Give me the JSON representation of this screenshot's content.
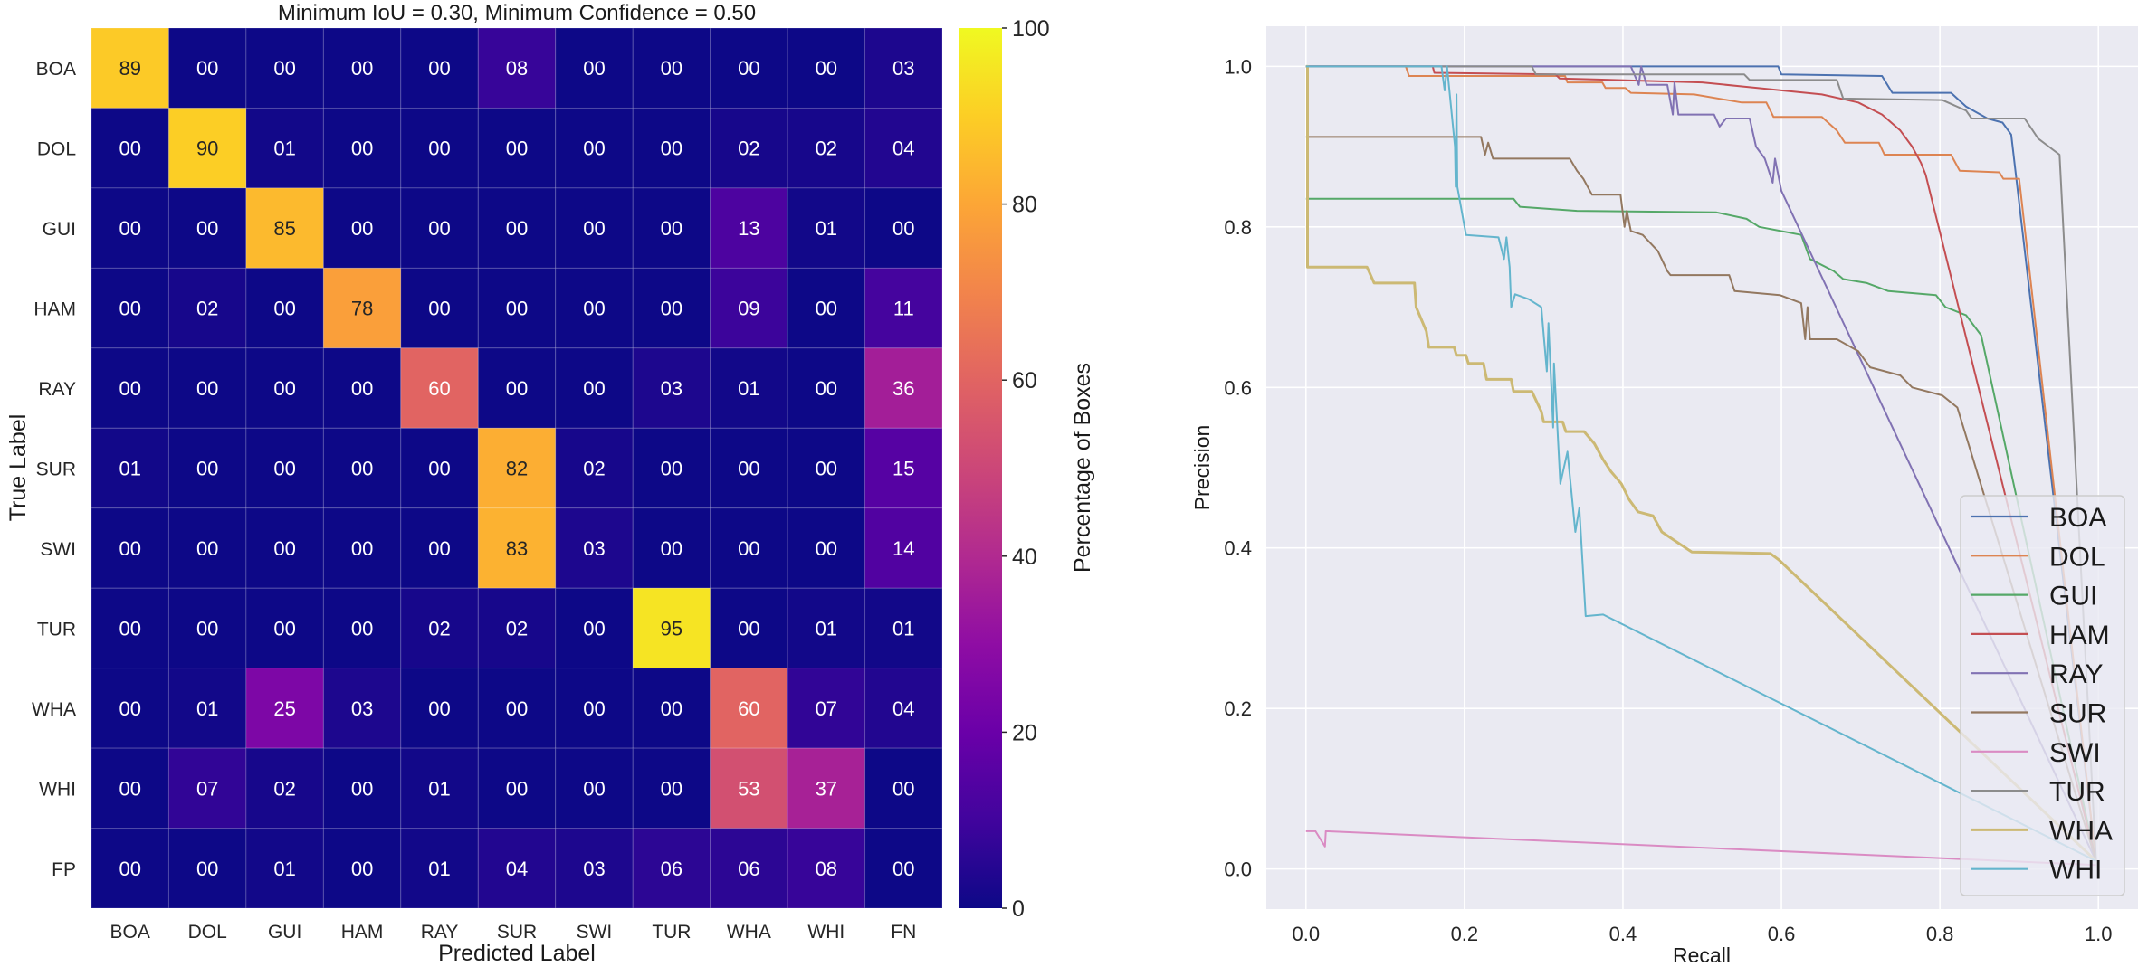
{
  "chart_data": [
    {
      "type": "heatmap",
      "title": "Minimum IoU = 0.30, Minimum Confidence = 0.50",
      "xlabel": "Predicted Label",
      "ylabel": "True Label",
      "x_categories": [
        "BOA",
        "DOL",
        "GUI",
        "HAM",
        "RAY",
        "SUR",
        "SWI",
        "TUR",
        "WHA",
        "WHI",
        "FN"
      ],
      "y_categories": [
        "BOA",
        "DOL",
        "GUI",
        "HAM",
        "RAY",
        "SUR",
        "SWI",
        "TUR",
        "WHA",
        "WHI",
        "FP"
      ],
      "values": [
        [
          "89",
          "00",
          "00",
          "00",
          "00",
          "08",
          "00",
          "00",
          "00",
          "00",
          "03"
        ],
        [
          "00",
          "90",
          "01",
          "00",
          "00",
          "00",
          "00",
          "00",
          "02",
          "02",
          "04"
        ],
        [
          "00",
          "00",
          "85",
          "00",
          "00",
          "00",
          "00",
          "00",
          "13",
          "01",
          "00"
        ],
        [
          "00",
          "02",
          "00",
          "78",
          "00",
          "00",
          "00",
          "00",
          "09",
          "00",
          "11"
        ],
        [
          "00",
          "00",
          "00",
          "00",
          "60",
          "00",
          "00",
          "03",
          "01",
          "00",
          "36"
        ],
        [
          "01",
          "00",
          "00",
          "00",
          "00",
          "82",
          "02",
          "00",
          "00",
          "00",
          "15"
        ],
        [
          "00",
          "00",
          "00",
          "00",
          "00",
          "83",
          "03",
          "00",
          "00",
          "00",
          "14"
        ],
        [
          "00",
          "00",
          "00",
          "00",
          "02",
          "02",
          "00",
          "95",
          "00",
          "01",
          "01"
        ],
        [
          "00",
          "01",
          "25",
          "03",
          "00",
          "00",
          "00",
          "00",
          "60",
          "07",
          "04"
        ],
        [
          "00",
          "07",
          "02",
          "00",
          "01",
          "00",
          "00",
          "00",
          "53",
          "37",
          "00"
        ],
        [
          "00",
          "00",
          "01",
          "00",
          "01",
          "04",
          "03",
          "06",
          "06",
          "08",
          "00"
        ]
      ],
      "colormap": "plasma",
      "colorbar": {
        "label": "Percentage of Boxes",
        "range": [
          0,
          100
        ],
        "ticks": [
          "0",
          "20",
          "40",
          "60",
          "80",
          "100"
        ]
      }
    },
    {
      "type": "line",
      "xlabel": "Recall",
      "ylabel": "Precision",
      "xlim": [
        -0.05,
        1.05
      ],
      "ylim": [
        -0.05,
        1.05
      ],
      "xticks": [
        "0.0",
        "0.2",
        "0.4",
        "0.6",
        "0.8",
        "1.0"
      ],
      "yticks": [
        "0.0",
        "0.2",
        "0.4",
        "0.6",
        "0.8",
        "1.0"
      ],
      "grid": true,
      "legend_position": "lower-right",
      "series": [
        {
          "name": "BOA",
          "color": "#4c72b0",
          "points": [
            [
              0,
              1
            ],
            [
              0.596,
              1
            ],
            [
              0.6,
              0.99
            ],
            [
              0.727,
              0.988
            ],
            [
              0.735,
              0.975
            ],
            [
              0.74,
              0.967
            ],
            [
              0.814,
              0.967
            ],
            [
              0.833,
              0.95
            ],
            [
              0.86,
              0.935
            ],
            [
              0.879,
              0.93
            ],
            [
              0.89,
              0.915
            ],
            [
              0.997,
              0.01
            ]
          ]
        },
        {
          "name": "DOL",
          "color": "#dd8452",
          "points": [
            [
              0,
              1
            ],
            [
              0.126,
              1
            ],
            [
              0.13,
              0.988
            ],
            [
              0.327,
              0.988
            ],
            [
              0.33,
              0.98
            ],
            [
              0.374,
              0.98
            ],
            [
              0.378,
              0.973
            ],
            [
              0.403,
              0.973
            ],
            [
              0.41,
              0.967
            ],
            [
              0.49,
              0.965
            ],
            [
              0.55,
              0.955
            ],
            [
              0.581,
              0.955
            ],
            [
              0.59,
              0.937
            ],
            [
              0.651,
              0.937
            ],
            [
              0.67,
              0.92
            ],
            [
              0.68,
              0.905
            ],
            [
              0.723,
              0.905
            ],
            [
              0.73,
              0.89
            ],
            [
              0.814,
              0.89
            ],
            [
              0.825,
              0.87
            ],
            [
              0.875,
              0.868
            ],
            [
              0.88,
              0.86
            ],
            [
              0.9,
              0.86
            ],
            [
              0.997,
              0.01
            ]
          ]
        },
        {
          "name": "GUI",
          "color": "#55a868",
          "points": [
            [
              0,
              0.835
            ],
            [
              0.262,
              0.835
            ],
            [
              0.27,
              0.825
            ],
            [
              0.342,
              0.82
            ],
            [
              0.518,
              0.818
            ],
            [
              0.556,
              0.81
            ],
            [
              0.572,
              0.8
            ],
            [
              0.625,
              0.79
            ],
            [
              0.636,
              0.76
            ],
            [
              0.666,
              0.745
            ],
            [
              0.678,
              0.735
            ],
            [
              0.708,
              0.73
            ],
            [
              0.735,
              0.72
            ],
            [
              0.795,
              0.715
            ],
            [
              0.807,
              0.7
            ],
            [
              0.833,
              0.69
            ],
            [
              0.852,
              0.665
            ],
            [
              0.997,
              0.01
            ]
          ]
        },
        {
          "name": "HAM",
          "color": "#c44e52",
          "points": [
            [
              0,
              1
            ],
            [
              0.16,
              1
            ],
            [
              0.162,
              0.992
            ],
            [
              0.315,
              0.99
            ],
            [
              0.32,
              0.985
            ],
            [
              0.5,
              0.98
            ],
            [
              0.55,
              0.975
            ],
            [
              0.651,
              0.965
            ],
            [
              0.697,
              0.955
            ],
            [
              0.727,
              0.94
            ],
            [
              0.75,
              0.92
            ],
            [
              0.765,
              0.9
            ],
            [
              0.776,
              0.88
            ],
            [
              0.782,
              0.865
            ],
            [
              0.997,
              0.01
            ]
          ]
        },
        {
          "name": "RAY",
          "color": "#8172b3",
          "points": [
            [
              0,
              1
            ],
            [
              0.41,
              1
            ],
            [
              0.42,
              0.977
            ],
            [
              0.423,
              1
            ],
            [
              0.43,
              0.977
            ],
            [
              0.456,
              0.977
            ],
            [
              0.463,
              0.94
            ],
            [
              0.465,
              0.98
            ],
            [
              0.47,
              0.94
            ],
            [
              0.515,
              0.94
            ],
            [
              0.522,
              0.925
            ],
            [
              0.53,
              0.935
            ],
            [
              0.56,
              0.935
            ],
            [
              0.568,
              0.9
            ],
            [
              0.579,
              0.885
            ],
            [
              0.589,
              0.855
            ],
            [
              0.592,
              0.885
            ],
            [
              0.6,
              0.845
            ],
            [
              0.997,
              0.01
            ]
          ]
        },
        {
          "name": "SUR",
          "color": "#937860",
          "points": [
            [
              0,
              0.912
            ],
            [
              0.221,
              0.912
            ],
            [
              0.226,
              0.89
            ],
            [
              0.23,
              0.905
            ],
            [
              0.236,
              0.885
            ],
            [
              0.333,
              0.885
            ],
            [
              0.342,
              0.87
            ],
            [
              0.35,
              0.86
            ],
            [
              0.361,
              0.84
            ],
            [
              0.397,
              0.84
            ],
            [
              0.402,
              0.8
            ],
            [
              0.405,
              0.82
            ],
            [
              0.41,
              0.795
            ],
            [
              0.425,
              0.79
            ],
            [
              0.444,
              0.77
            ],
            [
              0.456,
              0.745
            ],
            [
              0.46,
              0.74
            ],
            [
              0.534,
              0.74
            ],
            [
              0.541,
              0.72
            ],
            [
              0.598,
              0.715
            ],
            [
              0.625,
              0.705
            ],
            [
              0.63,
              0.66
            ],
            [
              0.633,
              0.7
            ],
            [
              0.636,
              0.66
            ],
            [
              0.67,
              0.66
            ],
            [
              0.697,
              0.645
            ],
            [
              0.712,
              0.625
            ],
            [
              0.75,
              0.615
            ],
            [
              0.765,
              0.6
            ],
            [
              0.803,
              0.59
            ],
            [
              0.822,
              0.575
            ],
            [
              0.997,
              0.01
            ]
          ]
        },
        {
          "name": "SWI",
          "color": "#da8bc3",
          "points": [
            [
              0,
              0.047
            ],
            [
              0.012,
              0.047
            ],
            [
              0.024,
              0.028
            ],
            [
              0.025,
              0.047
            ],
            [
              0.997,
              0.005
            ]
          ]
        },
        {
          "name": "TUR",
          "color": "#8c8c8c",
          "points": [
            [
              0,
              1
            ],
            [
              0.285,
              1
            ],
            [
              0.29,
              0.99
            ],
            [
              0.553,
              0.99
            ],
            [
              0.56,
              0.983
            ],
            [
              0.67,
              0.983
            ],
            [
              0.678,
              0.96
            ],
            [
              0.803,
              0.958
            ],
            [
              0.833,
              0.945
            ],
            [
              0.84,
              0.935
            ],
            [
              0.907,
              0.935
            ],
            [
              0.924,
              0.91
            ],
            [
              0.951,
              0.89
            ],
            [
              0.997,
              0.01
            ]
          ]
        },
        {
          "name": "WHA",
          "color": "#ccb974",
          "points": [
            [
              0,
              1
            ],
            [
              0.002,
              1
            ],
            [
              0.002,
              0.75
            ],
            [
              0.077,
              0.75
            ],
            [
              0.086,
              0.73
            ],
            [
              0.137,
              0.73
            ],
            [
              0.139,
              0.7
            ],
            [
              0.152,
              0.67
            ],
            [
              0.155,
              0.65
            ],
            [
              0.187,
              0.65
            ],
            [
              0.19,
              0.64
            ],
            [
              0.202,
              0.64
            ],
            [
              0.205,
              0.63
            ],
            [
              0.224,
              0.63
            ],
            [
              0.228,
              0.61
            ],
            [
              0.259,
              0.61
            ],
            [
              0.262,
              0.595
            ],
            [
              0.285,
              0.595
            ],
            [
              0.297,
              0.57
            ],
            [
              0.3,
              0.557
            ],
            [
              0.324,
              0.557
            ],
            [
              0.328,
              0.545
            ],
            [
              0.351,
              0.545
            ],
            [
              0.364,
              0.53
            ],
            [
              0.375,
              0.51
            ],
            [
              0.385,
              0.495
            ],
            [
              0.398,
              0.48
            ],
            [
              0.408,
              0.46
            ],
            [
              0.419,
              0.445
            ],
            [
              0.438,
              0.44
            ],
            [
              0.449,
              0.42
            ],
            [
              0.464,
              0.41
            ],
            [
              0.487,
              0.395
            ],
            [
              0.586,
              0.393
            ],
            [
              0.597,
              0.385
            ],
            [
              0.997,
              0.01
            ]
          ]
        },
        {
          "name": "WHI",
          "color": "#64b5cd",
          "points": [
            [
              0,
              1
            ],
            [
              0.171,
              1
            ],
            [
              0.175,
              0.97
            ],
            [
              0.178,
              1
            ],
            [
              0.183,
              0.95
            ],
            [
              0.188,
              0.9
            ],
            [
              0.189,
              0.85
            ],
            [
              0.19,
              0.965
            ],
            [
              0.191,
              0.85
            ],
            [
              0.202,
              0.79
            ],
            [
              0.243,
              0.787
            ],
            [
              0.25,
              0.76
            ],
            [
              0.253,
              0.787
            ],
            [
              0.257,
              0.75
            ],
            [
              0.259,
              0.7
            ],
            [
              0.264,
              0.716
            ],
            [
              0.281,
              0.71
            ],
            [
              0.297,
              0.7
            ],
            [
              0.304,
              0.62
            ],
            [
              0.306,
              0.68
            ],
            [
              0.312,
              0.55
            ],
            [
              0.313,
              0.63
            ],
            [
              0.321,
              0.48
            ],
            [
              0.33,
              0.52
            ],
            [
              0.34,
              0.42
            ],
            [
              0.345,
              0.45
            ],
            [
              0.353,
              0.315
            ],
            [
              0.375,
              0.317
            ],
            [
              0.997,
              0.01
            ]
          ]
        }
      ]
    }
  ]
}
